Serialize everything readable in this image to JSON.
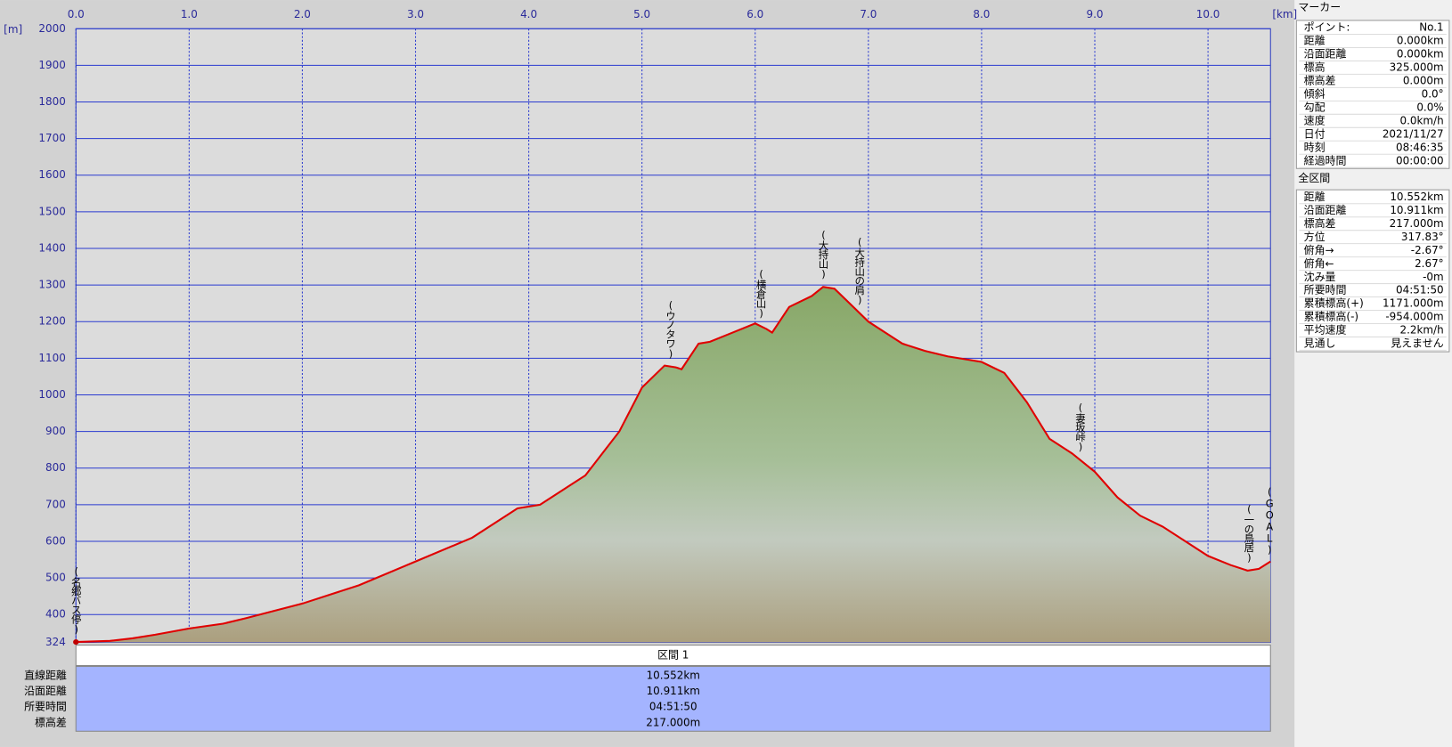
{
  "chart_data": {
    "type": "area",
    "x_unit": "[km]",
    "y_unit": "[m]",
    "color": "#e00000",
    "grid": true,
    "xlim": [
      0,
      10.552
    ],
    "ylim": [
      324,
      2000
    ],
    "xticks": [
      {
        "value": 0,
        "label": "0.0"
      },
      {
        "value": 1,
        "label": "1.0"
      },
      {
        "value": 2,
        "label": "2.0"
      },
      {
        "value": 3,
        "label": "3.0"
      },
      {
        "value": 4,
        "label": "4.0"
      },
      {
        "value": 5,
        "label": "5.0"
      },
      {
        "value": 6,
        "label": "6.0"
      },
      {
        "value": 7,
        "label": "7.0"
      },
      {
        "value": 8,
        "label": "8.0"
      },
      {
        "value": 9,
        "label": "9.0"
      },
      {
        "value": 10,
        "label": "10.0"
      }
    ],
    "yticks": [
      324,
      400,
      500,
      600,
      700,
      800,
      900,
      1000,
      1100,
      1200,
      1300,
      1400,
      1500,
      1600,
      1700,
      1800,
      1900,
      2000
    ],
    "x": [
      0,
      0.3,
      0.5,
      0.7,
      1.0,
      1.3,
      1.5,
      2.0,
      2.5,
      3.0,
      3.5,
      3.9,
      4.1,
      4.5,
      4.8,
      5.0,
      5.2,
      5.3,
      5.35,
      5.5,
      5.6,
      5.8,
      6.0,
      6.1,
      6.15,
      6.3,
      6.5,
      6.6,
      6.7,
      6.8,
      7.0,
      7.3,
      7.5,
      7.7,
      8.0,
      8.2,
      8.4,
      8.6,
      8.8,
      9.0,
      9.2,
      9.4,
      9.6,
      9.8,
      10.0,
      10.2,
      10.35,
      10.45,
      10.552
    ],
    "values": [
      325,
      328,
      335,
      345,
      362,
      375,
      390,
      430,
      480,
      545,
      610,
      690,
      700,
      780,
      900,
      1020,
      1080,
      1075,
      1070,
      1140,
      1145,
      1170,
      1195,
      1180,
      1170,
      1240,
      1270,
      1295,
      1290,
      1260,
      1200,
      1140,
      1120,
      1105,
      1090,
      1060,
      980,
      880,
      840,
      790,
      720,
      670,
      640,
      600,
      560,
      535,
      520,
      525,
      545
    ],
    "annotations": [
      {
        "text": "(名郷バス停)",
        "x": 0
      },
      {
        "text": "(ウノタワ)",
        "x": 5.25
      },
      {
        "text": "(横倉山)",
        "x": 6.05
      },
      {
        "text": "(大持山)",
        "x": 6.6
      },
      {
        "text": "(大持山の肩)",
        "x": 6.92
      },
      {
        "text": "(妻坂峠)",
        "x": 8.87
      },
      {
        "text": "(一の鳥居)",
        "x": 10.36
      },
      {
        "text": "(GOAL)",
        "x": 10.54
      }
    ]
  },
  "summary_table": {
    "header": "区間 1",
    "rows": [
      [
        "直線距離",
        "10.552km"
      ],
      [
        "沿面距離",
        "10.911km"
      ],
      [
        "所要時間",
        "04:51:50"
      ],
      [
        "標高差",
        "217.000m"
      ]
    ]
  },
  "marker_panel": {
    "title": "マーカー",
    "rows": [
      [
        "ポイント:",
        "No.1"
      ],
      [
        "距離",
        "0.000km"
      ],
      [
        "沿面距離",
        "0.000km"
      ],
      [
        "標高",
        "325.000m"
      ],
      [
        "標高差",
        "0.000m"
      ],
      [
        "傾斜",
        "0.0°"
      ],
      [
        "勾配",
        "0.0%"
      ],
      [
        "速度",
        "0.0km/h"
      ],
      [
        "日付",
        "2021/11/27"
      ],
      [
        "時刻",
        "08:46:35"
      ],
      [
        "経過時間",
        "00:00:00"
      ]
    ]
  },
  "total_panel": {
    "title": "全区間",
    "rows": [
      [
        "距離",
        "10.552km"
      ],
      [
        "沿面距離",
        "10.911km"
      ],
      [
        "標高差",
        "217.000m"
      ],
      [
        "方位",
        "317.83°"
      ],
      [
        "俯角→",
        "-2.67°"
      ],
      [
        "俯角←",
        "2.67°"
      ],
      [
        "沈み量",
        "-0m"
      ],
      [
        "所要時間",
        "04:51:50"
      ],
      [
        "累積標高(+)",
        "1171.000m"
      ],
      [
        "累積標高(-)",
        "-954.000m"
      ],
      [
        "平均速度",
        "2.2km/h"
      ],
      [
        "見通し",
        "見えません"
      ]
    ]
  }
}
